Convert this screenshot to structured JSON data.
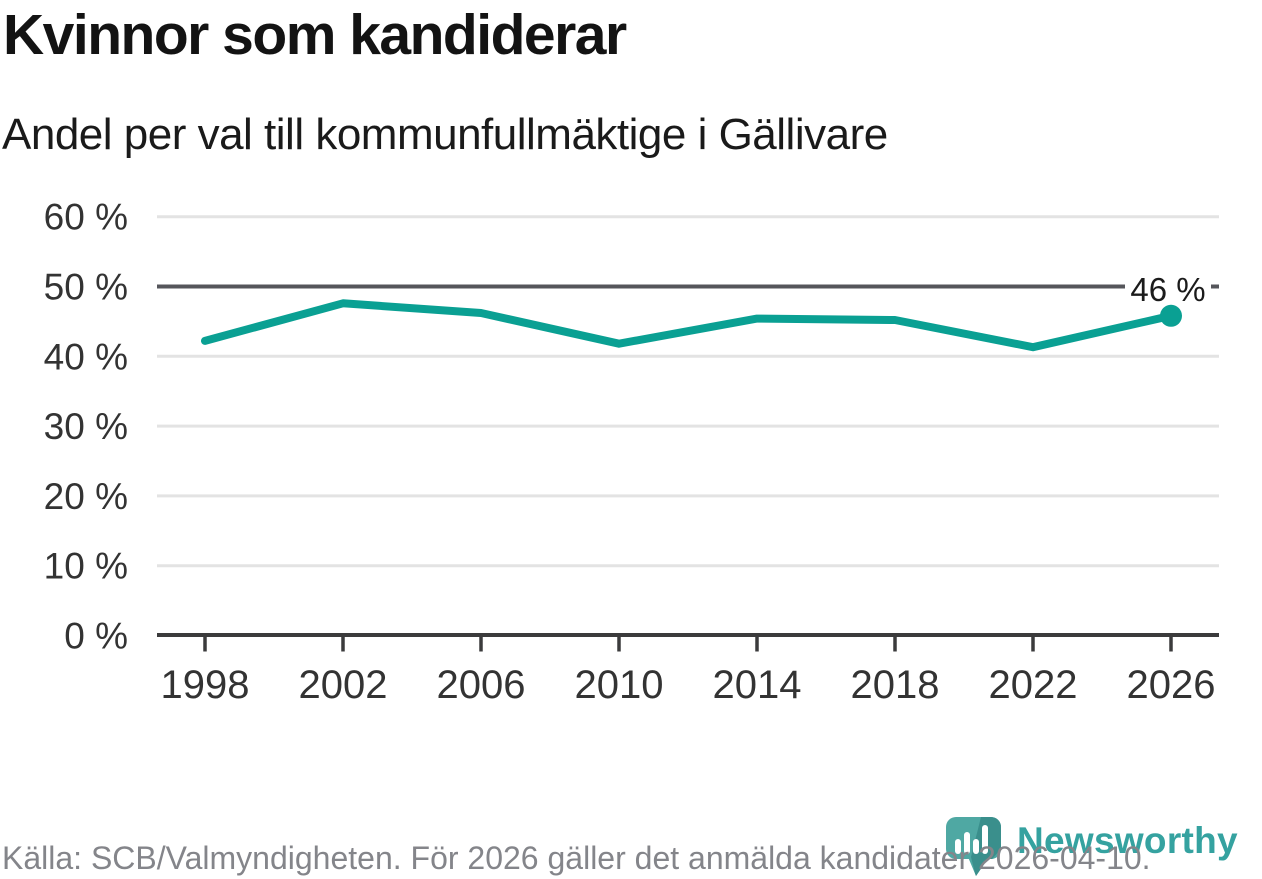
{
  "header": {
    "title": "Kvinnor som kandiderar",
    "subtitle": "Andel per val till kommunfullmäktige i Gällivare"
  },
  "chart_data": {
    "type": "line",
    "title": "Kvinnor som kandiderar",
    "subtitle": "Andel per val till kommunfullmäktige i Gällivare",
    "categories": [
      "1998",
      "2002",
      "2006",
      "2010",
      "2014",
      "2018",
      "2022",
      "2026"
    ],
    "series": [
      {
        "name": "Kvinnor som kandiderar",
        "values": [
          42.2,
          47.6,
          46.2,
          41.8,
          45.4,
          45.2,
          41.3,
          45.8
        ]
      }
    ],
    "unit": "%",
    "ylim": [
      0,
      60
    ],
    "y_tick_values": [
      0,
      10,
      20,
      30,
      40,
      50,
      60
    ],
    "y_tick_labels": [
      "0 %",
      "10 %",
      "20 %",
      "30 %",
      "40 %",
      "50 %",
      "60 %"
    ],
    "emphasized_gridline_value": 50,
    "end_label": "46 %",
    "grid": "on",
    "legend": "none"
  },
  "footer": {
    "source": "Källa: SCB/Valmyndigheten. För 2026 gäller det anmälda kandidater 2026-04-10.",
    "brand": "Newsworthy"
  },
  "colors": {
    "accent": "#0aa093",
    "grid": "#e3e3e3",
    "emphasized_grid": "#55565b",
    "axis": "#3b3b3c",
    "tick_label": "#333333",
    "annotation_text": "#1b1b1b",
    "footer_text": "#84858a",
    "logo_teal": "#4fa8a3",
    "logo_teal_dark": "#3a8f8c",
    "wordmark_teal": "#35a2a0"
  }
}
